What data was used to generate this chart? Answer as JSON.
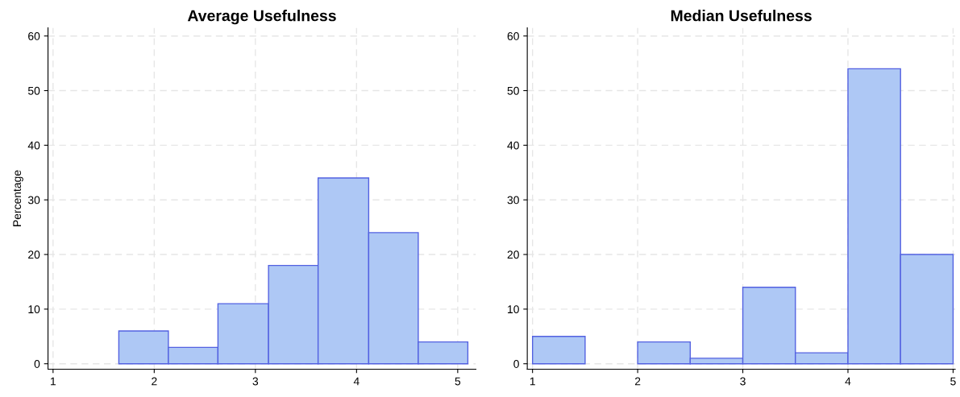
{
  "chart_data": [
    {
      "type": "histogram",
      "title": "Average Usefulness",
      "ylabel": "Percentage",
      "bins": [
        1.65,
        2.14,
        2.63,
        3.13,
        3.62,
        4.12,
        4.61,
        5.1
      ],
      "values": [
        6,
        3,
        11,
        18,
        34,
        24,
        4
      ],
      "color": "#aec8f5",
      "xlim": [
        0.95,
        5.18
      ],
      "xticks": [
        1,
        2,
        3,
        4,
        5
      ],
      "ylim": [
        -1,
        61.5
      ],
      "yticks": [
        0,
        10,
        20,
        30,
        40,
        50,
        60
      ],
      "grid": true
    },
    {
      "type": "histogram",
      "title": "Median Usefulness",
      "bins": [
        1,
        1.5,
        2,
        2.5,
        3,
        3.5,
        4,
        4.5,
        5
      ],
      "values": [
        5,
        0,
        4,
        1,
        14,
        2,
        54,
        20
      ],
      "color": "#aec8f5",
      "xlim": [
        0.95,
        5.02
      ],
      "xticks": [
        1,
        2,
        3,
        4,
        5
      ],
      "ylim": [
        -1,
        61.5
      ],
      "yticks": [
        0,
        10,
        20,
        30,
        40,
        50,
        60
      ],
      "grid": true
    }
  ]
}
